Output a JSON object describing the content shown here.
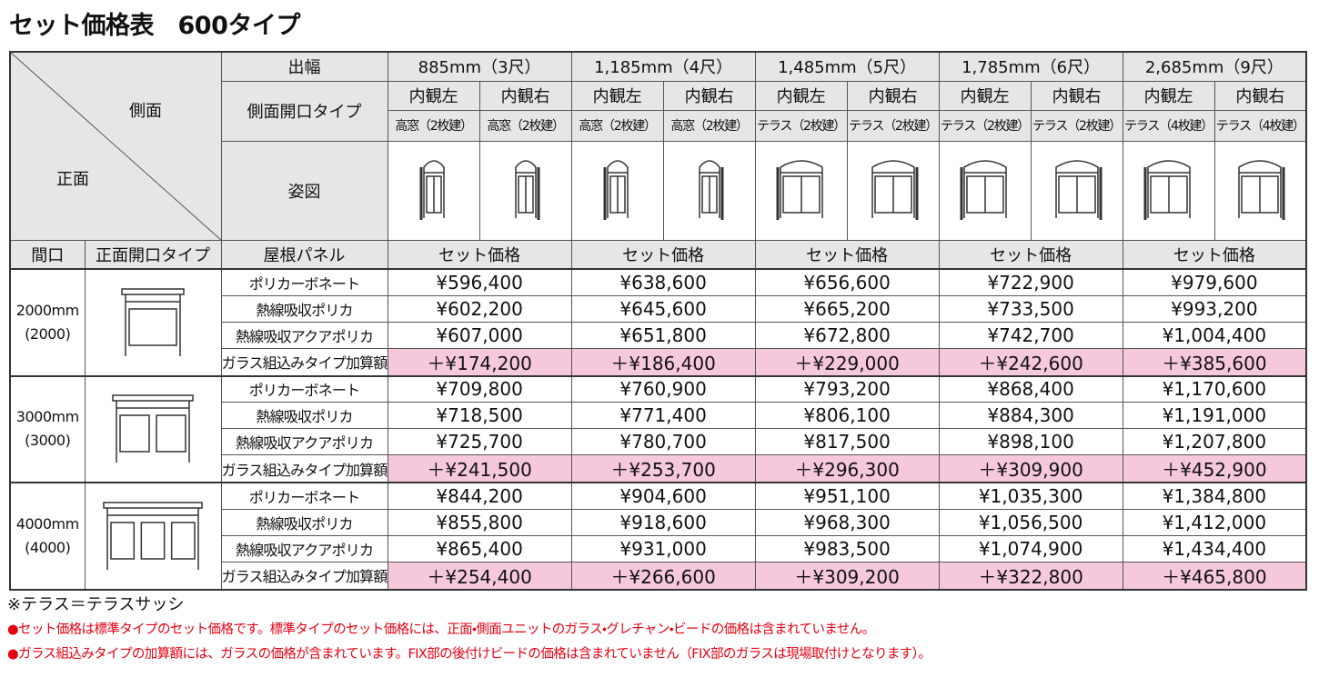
{
  "title": "セット価格表　600タイプ",
  "table": {
    "corner": {
      "side": "側面",
      "front": "正面"
    },
    "header_labels": [
      "出幅",
      "側面開口タイプ",
      "姿図"
    ],
    "sub_header": [
      "間口",
      "正面開口タイプ",
      "屋根パネル"
    ],
    "widths": [
      {
        "label": "885mm（3尺）",
        "views": [
          "内観左",
          "内観右"
        ],
        "types": [
          "高窓（2枚建）",
          "高窓（2枚建）"
        ],
        "price_heading": "セット価格"
      },
      {
        "label": "1,185mm（4尺）",
        "views": [
          "内観左",
          "内観右"
        ],
        "types": [
          "高窓（2枚建）",
          "高窓（2枚建）"
        ],
        "price_heading": "セット価格"
      },
      {
        "label": "1,485mm（5尺）",
        "views": [
          "内観左",
          "内観右"
        ],
        "types": [
          "テラス（2枚建）",
          "テラス（2枚建）"
        ],
        "price_heading": "セット価格"
      },
      {
        "label": "1,785mm（6尺）",
        "views": [
          "内観左",
          "内観右"
        ],
        "types": [
          "テラス（2枚建）",
          "テラス（2枚建）"
        ],
        "price_heading": "セット価格"
      },
      {
        "label": "2,685mm（9尺）",
        "views": [
          "内観左",
          "内観右"
        ],
        "types": [
          "テラス（4枚建）",
          "テラス（4枚建）"
        ],
        "price_heading": "セット価格"
      }
    ],
    "groups": [
      {
        "frontage": "2000mm",
        "frontage_sub": "(2000)",
        "rows": [
          {
            "panel": "ポリカーボネート",
            "prices": [
              "¥596,400",
              "¥638,600",
              "¥656,600",
              "¥722,900",
              "¥979,600"
            ]
          },
          {
            "panel": "熱線吸収ポリカ",
            "prices": [
              "¥602,200",
              "¥645,600",
              "¥665,200",
              "¥733,500",
              "¥993,200"
            ]
          },
          {
            "panel": "熱線吸収アクアポリカ",
            "prices": [
              "¥607,000",
              "¥651,800",
              "¥672,800",
              "¥742,700",
              "¥1,004,400"
            ]
          },
          {
            "panel": "ガラス組込みタイプ加算額",
            "prices": [
              "＋¥174,200",
              "＋¥186,400",
              "＋¥229,000",
              "＋¥242,600",
              "＋¥385,600"
            ]
          }
        ]
      },
      {
        "frontage": "3000mm",
        "frontage_sub": "(3000)",
        "rows": [
          {
            "panel": "ポリカーボネート",
            "prices": [
              "¥709,800",
              "¥760,900",
              "¥793,200",
              "¥868,400",
              "¥1,170,600"
            ]
          },
          {
            "panel": "熱線吸収ポリカ",
            "prices": [
              "¥718,500",
              "¥771,400",
              "¥806,100",
              "¥884,300",
              "¥1,191,000"
            ]
          },
          {
            "panel": "熱線吸収アクアポリカ",
            "prices": [
              "¥725,700",
              "¥780,700",
              "¥817,500",
              "¥898,100",
              "¥1,207,800"
            ]
          },
          {
            "panel": "ガラス組込みタイプ加算額",
            "prices": [
              "＋¥241,500",
              "＋¥253,700",
              "＋¥296,300",
              "＋¥309,900",
              "＋¥452,900"
            ]
          }
        ]
      },
      {
        "frontage": "4000mm",
        "frontage_sub": "(4000)",
        "rows": [
          {
            "panel": "ポリカーボネート",
            "prices": [
              "¥844,200",
              "¥904,600",
              "¥951,100",
              "¥1,035,300",
              "¥1,384,800"
            ]
          },
          {
            "panel": "熱線吸収ポリカ",
            "prices": [
              "¥855,800",
              "¥918,600",
              "¥968,300",
              "¥1,056,500",
              "¥1,412,000"
            ]
          },
          {
            "panel": "熱線吸収アクアポリカ",
            "prices": [
              "¥865,400",
              "¥931,000",
              "¥983,500",
              "¥1,074,900",
              "¥1,434,400"
            ]
          },
          {
            "panel": "ガラス組込みタイプ加算額",
            "prices": [
              "＋¥254,400",
              "＋¥266,600",
              "＋¥309,200",
              "＋¥322,800",
              "＋¥465,800"
            ]
          }
        ]
      }
    ]
  },
  "notes": [
    "※テラス＝テラスサッシ",
    "●セット価格は標準タイプのセット価格です。標準タイプのセット価格には、正面・側面ユニットのガラス・グレチャン・ビードの価格は含まれていません。",
    "●ガラス組込みタイプの加算額には、ガラスの価格が含まれています。FIX部の後付けビードの価格は含まれていません（FIX部のガラスは現場取付けとなります）。"
  ]
}
